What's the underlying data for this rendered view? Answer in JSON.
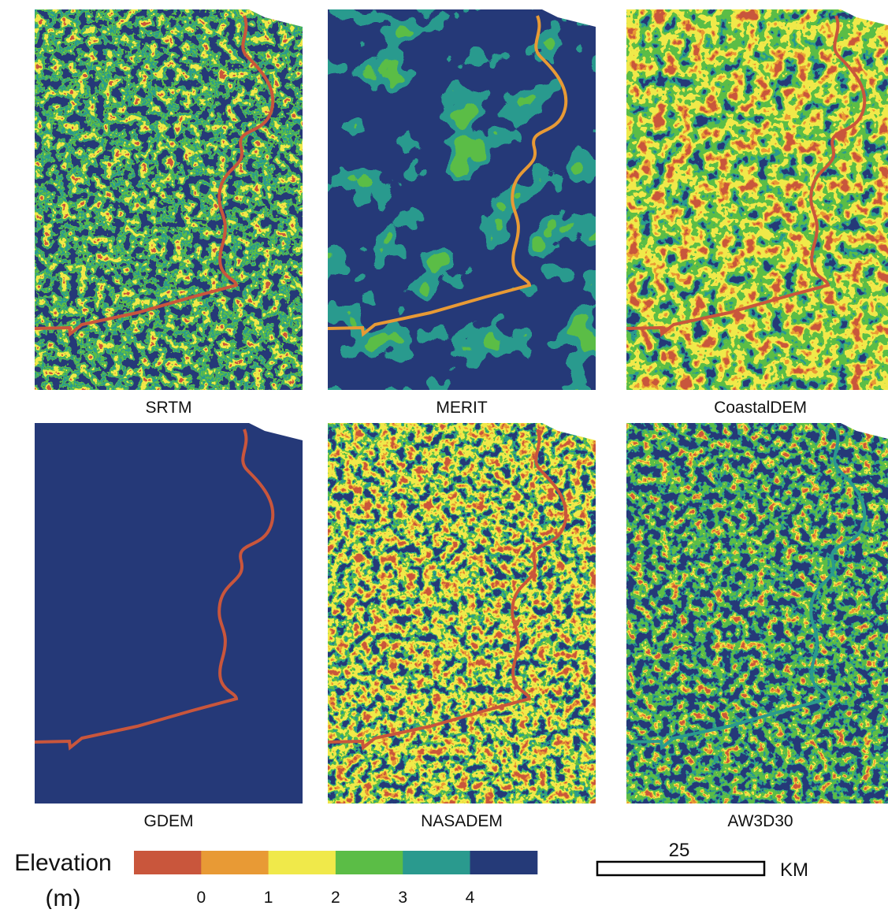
{
  "panels": [
    {
      "label": "SRTM"
    },
    {
      "label": "MERIT"
    },
    {
      "label": "CoastalDEM"
    },
    {
      "label": "GDEM"
    },
    {
      "label": "NASADEM"
    },
    {
      "label": "AW3D30"
    }
  ],
  "legend": {
    "title": "Elevation",
    "unit": "(m)",
    "colors": [
      "#c9563c",
      "#e89a35",
      "#f0e94a",
      "#5bbd46",
      "#2a9a8e",
      "#253a78"
    ],
    "ticks": [
      0,
      1,
      2,
      3,
      4
    ]
  },
  "scale_bar": {
    "value": 25,
    "unit": "KM"
  }
}
